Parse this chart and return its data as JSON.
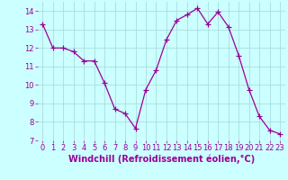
{
  "x": [
    0,
    1,
    2,
    3,
    4,
    5,
    6,
    7,
    8,
    9,
    10,
    11,
    12,
    13,
    14,
    15,
    16,
    17,
    18,
    19,
    20,
    21,
    22,
    23
  ],
  "y": [
    13.3,
    12.0,
    12.0,
    11.8,
    11.3,
    11.3,
    10.1,
    8.7,
    8.45,
    7.65,
    9.75,
    10.8,
    12.45,
    13.5,
    13.8,
    14.15,
    13.3,
    13.95,
    13.15,
    11.6,
    9.75,
    8.3,
    7.55,
    7.35
  ],
  "line_color": "#990099",
  "marker": "+",
  "marker_size": 4,
  "bg_color": "#ccffff",
  "grid_color": "#aadddd",
  "xlabel": "Windchill (Refroidissement éolien,°C)",
  "xlabel_color": "#990099",
  "xlabel_fontsize": 7,
  "tick_color": "#990099",
  "tick_fontsize": 6,
  "ylim": [
    7,
    14.5
  ],
  "xlim": [
    -0.5,
    23.5
  ],
  "yticks": [
    7,
    8,
    9,
    10,
    11,
    12,
    13,
    14
  ],
  "xticks": [
    0,
    1,
    2,
    3,
    4,
    5,
    6,
    7,
    8,
    9,
    10,
    11,
    12,
    13,
    14,
    15,
    16,
    17,
    18,
    19,
    20,
    21,
    22,
    23
  ]
}
